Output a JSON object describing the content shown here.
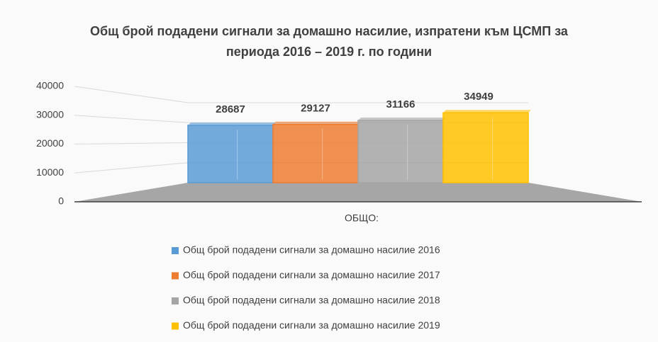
{
  "chart_data": {
    "type": "bar3d",
    "title": "Общ брой подадени сигнали за домашно насилие, изпратени към ЦСМП за периода 2016 – 2019 г. по години",
    "categories": [
      "ОБЩО:"
    ],
    "series": [
      {
        "name": "Общ брой подадени сигнали за домашно насилие 2016",
        "color": "#5b9bd5",
        "values": [
          28687
        ]
      },
      {
        "name": "Общ брой подадени сигнали за домашно насилие 2017",
        "color": "#ed7d31",
        "values": [
          29127
        ]
      },
      {
        "name": "Общ брой подадени сигнали за домашно насилие 2018",
        "color": "#a5a5a5",
        "values": [
          31166
        ]
      },
      {
        "name": "Общ брой подадени сигнали за домашно насилие 2019",
        "color": "#ffc000",
        "values": [
          34949
        ]
      }
    ],
    "ylim": [
      0,
      40000
    ],
    "yticks": [
      0,
      10000,
      20000,
      30000,
      40000
    ],
    "grid": true,
    "legend": "bottom"
  }
}
